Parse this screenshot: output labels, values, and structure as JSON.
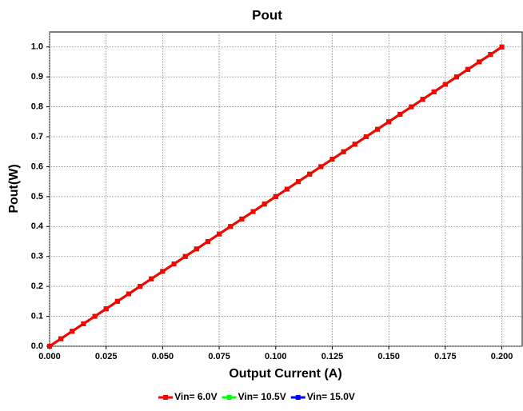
{
  "chart_data": {
    "type": "line",
    "title": "Pout",
    "x_label": "Output Current (A)",
    "y_label": "Pout(W)",
    "x": [
      0,
      0.005,
      0.01,
      0.015,
      0.02,
      0.025,
      0.03,
      0.035,
      0.04,
      0.045,
      0.05,
      0.055,
      0.06,
      0.065,
      0.07,
      0.075,
      0.08,
      0.085,
      0.09,
      0.095,
      0.1,
      0.105,
      0.11,
      0.115,
      0.12,
      0.125,
      0.13,
      0.135,
      0.14,
      0.145,
      0.15,
      0.155,
      0.16,
      0.165,
      0.17,
      0.175,
      0.18,
      0.185,
      0.19,
      0.195,
      0.2
    ],
    "series": [
      {
        "name": "Vin= 6.0V",
        "color": "#ff0000",
        "values": [
          0,
          0.025,
          0.05,
          0.075,
          0.1,
          0.125,
          0.15,
          0.175,
          0.2,
          0.225,
          0.25,
          0.275,
          0.3,
          0.325,
          0.35,
          0.375,
          0.4,
          0.425,
          0.45,
          0.475,
          0.5,
          0.525,
          0.55,
          0.575,
          0.6,
          0.625,
          0.65,
          0.675,
          0.7,
          0.725,
          0.75,
          0.775,
          0.8,
          0.825,
          0.85,
          0.875,
          0.9,
          0.925,
          0.95,
          0.975,
          1
        ]
      },
      {
        "name": "Vin= 10.5V",
        "color": "#00ff00",
        "values": [
          0,
          0.025,
          0.05,
          0.075,
          0.1,
          0.125,
          0.15,
          0.175,
          0.2,
          0.225,
          0.25,
          0.275,
          0.3,
          0.325,
          0.35,
          0.375,
          0.4,
          0.425,
          0.45,
          0.475,
          0.5,
          0.525,
          0.55,
          0.575,
          0.6,
          0.625,
          0.65,
          0.675,
          0.7,
          0.725,
          0.75,
          0.775,
          0.8,
          0.825,
          0.85,
          0.875,
          0.9,
          0.925,
          0.95,
          0.975,
          1
        ]
      },
      {
        "name": "Vin= 15.0V",
        "color": "#0000ff",
        "values": [
          0,
          0.025,
          0.05,
          0.075,
          0.1,
          0.125,
          0.15,
          0.175,
          0.2,
          0.225,
          0.25,
          0.275,
          0.3,
          0.325,
          0.35,
          0.375,
          0.4,
          0.425,
          0.45,
          0.475,
          0.5,
          0.525,
          0.55,
          0.575,
          0.6,
          0.625,
          0.65,
          0.675,
          0.7,
          0.725,
          0.75,
          0.775,
          0.8,
          0.825,
          0.85,
          0.875,
          0.9,
          0.925,
          0.95,
          0.975,
          1
        ]
      }
    ],
    "xlim": [
      0,
      0.209
    ],
    "ylim": [
      0,
      1.05
    ],
    "xticks": [
      {
        "value": 0,
        "label": "0.000"
      },
      0.025,
      {
        "value": 0.05,
        "label": "0.050"
      },
      0.075,
      {
        "value": 0.1,
        "label": "0.100"
      },
      0.125,
      {
        "value": 0.15,
        "label": "0.150"
      },
      0.175,
      {
        "value": 0.2,
        "label": "0.200"
      }
    ],
    "yticks": [
      {
        "value": 0,
        "label": "0.0"
      },
      0.1,
      0.2,
      0.3,
      0.4,
      0.5,
      0.6,
      0.7,
      0.8,
      0.9,
      {
        "value": 1,
        "label": "1.0"
      }
    ],
    "grid": true,
    "legend": "bottom"
  }
}
